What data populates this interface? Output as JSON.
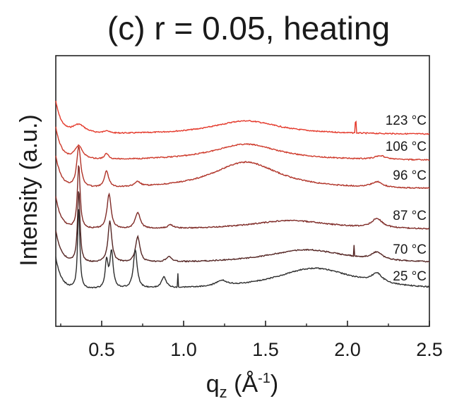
{
  "chart_data": {
    "type": "line",
    "title": "(c) r = 0.05, heating",
    "xlabel": {
      "main": "q",
      "sub": "z",
      "unit_prefix": " (Å",
      "unit_sup": "-1",
      "unit_suffix": ")"
    },
    "ylabel": "Intensity (a.u.)",
    "xlim": [
      0.22,
      2.5
    ],
    "x_ticks": [
      0.5,
      1.0,
      1.5,
      2.0,
      2.5
    ],
    "x_tick_labels": [
      "0.5",
      "1.0",
      "1.5",
      "2.0",
      "2.5"
    ],
    "y_ticks": false,
    "grid": false,
    "series": [
      {
        "name": "123 °C",
        "color": "#e4392b",
        "peaks": [
          [
            0.36,
            0.1,
            0.05
          ],
          [
            0.53,
            0.03,
            0.015
          ],
          [
            1.38,
            0.15,
            0.25
          ]
        ],
        "spikes": [
          [
            2.05,
            0.04
          ]
        ]
      },
      {
        "name": "106 °C",
        "color": "#cf3b2c",
        "peaks": [
          [
            0.36,
            0.15,
            0.03
          ],
          [
            0.53,
            0.06,
            0.015
          ],
          [
            1.38,
            0.18,
            0.25
          ],
          [
            2.2,
            0.04,
            0.04
          ]
        ],
        "spikes": []
      },
      {
        "name": "96 °C",
        "color": "#b03328",
        "peaks": [
          [
            0.36,
            0.45,
            0.015
          ],
          [
            0.53,
            0.18,
            0.015
          ],
          [
            0.72,
            0.05,
            0.02
          ],
          [
            1.38,
            0.3,
            0.25
          ],
          [
            2.18,
            0.06,
            0.04
          ]
        ],
        "spikes": []
      },
      {
        "name": "87 °C",
        "color": "#7e2a26",
        "peaks": [
          [
            0.36,
            0.7,
            0.01
          ],
          [
            0.545,
            0.38,
            0.015
          ],
          [
            0.72,
            0.18,
            0.018
          ],
          [
            0.92,
            0.04,
            0.02
          ],
          [
            1.65,
            0.1,
            0.3
          ],
          [
            2.18,
            0.1,
            0.04
          ]
        ],
        "spikes": []
      },
      {
        "name": "70 °C",
        "color": "#542523",
        "peaks": [
          [
            0.36,
            0.8,
            0.009
          ],
          [
            0.55,
            0.45,
            0.014
          ],
          [
            0.72,
            0.28,
            0.016
          ],
          [
            0.91,
            0.06,
            0.02
          ],
          [
            1.75,
            0.15,
            0.3
          ],
          [
            2.18,
            0.08,
            0.04
          ]
        ],
        "spikes": [
          [
            2.04,
            0.04
          ]
        ]
      },
      {
        "name": "25 °C",
        "color": "#2c2c2c",
        "peaks": [
          [
            0.36,
            0.9,
            0.008
          ],
          [
            0.53,
            0.3,
            0.01
          ],
          [
            0.56,
            0.4,
            0.012
          ],
          [
            0.705,
            0.42,
            0.014
          ],
          [
            0.88,
            0.12,
            0.018
          ],
          [
            1.23,
            0.06,
            0.04
          ],
          [
            1.8,
            0.24,
            0.3
          ],
          [
            2.18,
            0.1,
            0.04
          ]
        ],
        "spikes": [
          [
            0.965,
            0.05
          ]
        ]
      }
    ]
  }
}
